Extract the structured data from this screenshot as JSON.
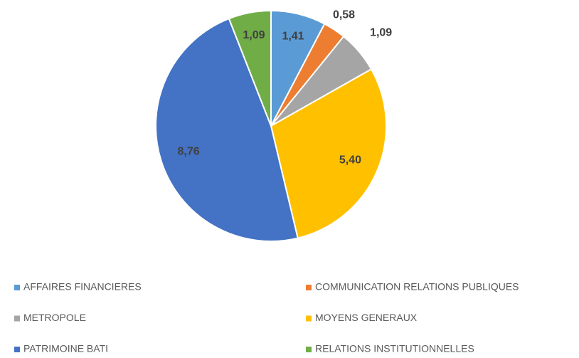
{
  "chart_data": {
    "type": "pie",
    "categories": [
      "AFFAIRES FINANCIERES",
      "COMMUNICATION RELATIONS PUBLIQUES",
      "METROPOLE",
      "MOYENS GENERAUX",
      "PATRIMOINE BATI",
      "RELATIONS INSTITUTIONNELLES"
    ],
    "values": [
      1.41,
      0.58,
      1.09,
      5.4,
      8.76,
      1.09
    ],
    "value_labels": [
      "1,41",
      "0,58",
      "1,09",
      "5,40",
      "8,76",
      "1,09"
    ],
    "colors": [
      "#5b9bd5",
      "#ed7d31",
      "#a5a5a5",
      "#ffc000",
      "#4472c4",
      "#70ad47"
    ],
    "legend": "bottom"
  }
}
